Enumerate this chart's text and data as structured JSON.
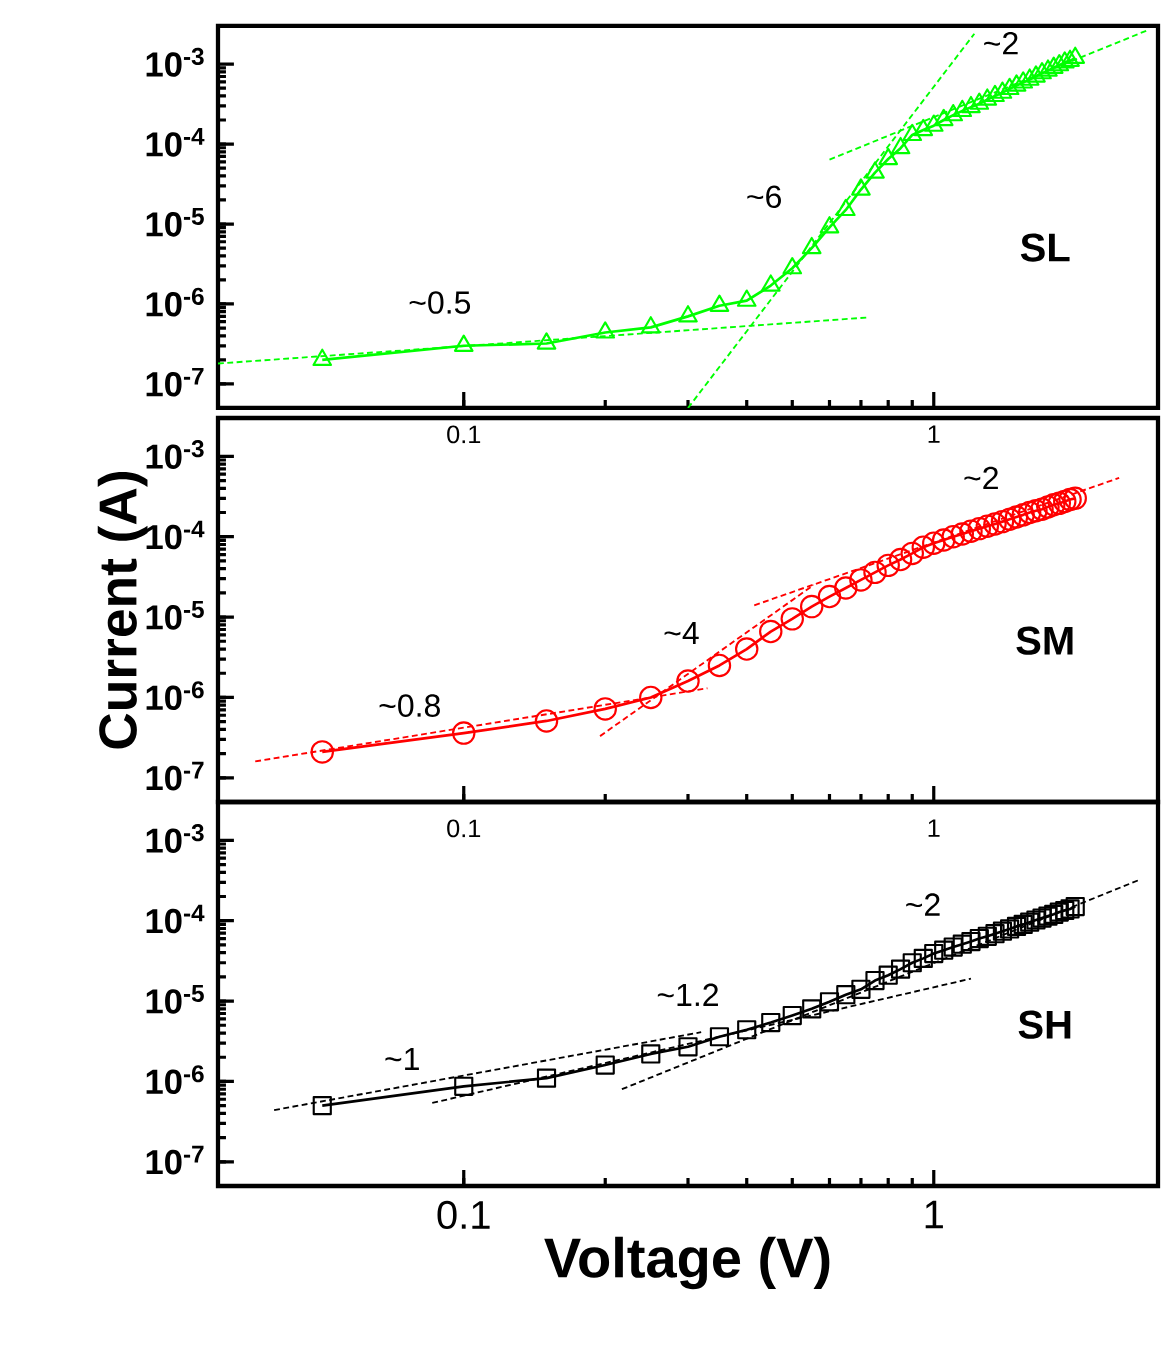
{
  "chart_data": [
    {
      "type": "line",
      "log": "xy",
      "xlim": [
        0.03,
        3
      ],
      "ylim": [
        5e-08,
        0.003
      ],
      "xticks": [
        0.1,
        1
      ],
      "yticks": [
        {
          "value": 1e-07,
          "label": "10$^{-7}$"
        },
        {
          "value": 1e-06,
          "label": "10$^{-6}$"
        },
        {
          "value": 1e-05,
          "label": "10$^{-5}$"
        },
        {
          "value": 0.0001,
          "label": "10$^{-4}$"
        },
        {
          "value": 0.001,
          "label": "10$^{-3}$"
        }
      ],
      "x": [
        0.05,
        0.1,
        0.15,
        0.2,
        0.25,
        0.3,
        0.35,
        0.4,
        0.45,
        0.5,
        0.55,
        0.6,
        0.65,
        0.7,
        0.75,
        0.8,
        0.85,
        0.9,
        0.95,
        1.0,
        1.05,
        1.1,
        1.15,
        1.2,
        1.25,
        1.3,
        1.35,
        1.4,
        1.45,
        1.5,
        1.55,
        1.6,
        1.65,
        1.7,
        1.75,
        1.8,
        1.85,
        1.9,
        1.95,
        2.0
      ],
      "series": [
        {
          "name": "SL",
          "color": "#00ff00",
          "marker": "triangle",
          "line_style": "solid",
          "values": [
            2e-07,
            3e-07,
            3.2e-07,
            4.4e-07,
            5.1e-07,
            7e-07,
            9.5e-07,
            1.1e-06,
            1.7e-06,
            2.8e-06,
            5e-06,
            9.1e-06,
            1.5e-05,
            2.7e-05,
            4.4e-05,
            6.5e-05,
            8.9e-05,
            0.00013,
            0.00015,
            0.00017,
            0.0002,
            0.00023,
            0.00026,
            0.00029,
            0.00032,
            0.00036,
            0.0004,
            0.00044,
            0.00049,
            0.00054,
            0.00059,
            0.00064,
            0.0007,
            0.00077,
            0.00083,
            0.0009,
            0.00097,
            0.00105,
            0.0011,
            0.0012
          ]
        },
        {
          "type": "line",
          "color": "#00ff00",
          "marker": "none",
          "line_style": "dashed",
          "x": [
            0.03,
            0.73
          ],
          "values": [
            1.8e-07,
            6.8e-07
          ]
        },
        {
          "type": "line",
          "color": "#00ff00",
          "marker": "none",
          "line_style": "dashed",
          "x": [
            0.3,
            1.22
          ],
          "values": [
            5e-08,
            0.0024
          ]
        },
        {
          "type": "line",
          "color": "#00ff00",
          "marker": "none",
          "line_style": "dashed",
          "x": [
            0.6,
            2.87
          ],
          "values": [
            6.4e-05,
            0.0027
          ]
        }
      ],
      "annotations": [
        "~0.5",
        "~6",
        "~2"
      ]
    },
    {
      "type": "line",
      "log": "xy",
      "xlim": [
        0.03,
        3
      ],
      "ylim": [
        5e-08,
        0.003
      ],
      "xticks": [
        0.1,
        1
      ],
      "yticks": [
        {
          "value": 1e-07,
          "label": "10$^{-7}$"
        },
        {
          "value": 1e-06,
          "label": "10$^{-6}$"
        },
        {
          "value": 1e-05,
          "label": "10$^{-5}$"
        },
        {
          "value": 0.0001,
          "label": "10$^{-4}$"
        },
        {
          "value": 0.001,
          "label": "10$^{-3}$"
        }
      ],
      "ylabel": "Current (A)",
      "x": [
        0.05,
        0.1,
        0.15,
        0.2,
        0.25,
        0.3,
        0.35,
        0.4,
        0.45,
        0.5,
        0.55,
        0.6,
        0.65,
        0.7,
        0.75,
        0.8,
        0.85,
        0.9,
        0.95,
        1.0,
        1.05,
        1.1,
        1.15,
        1.2,
        1.25,
        1.3,
        1.35,
        1.4,
        1.45,
        1.5,
        1.55,
        1.6,
        1.65,
        1.7,
        1.75,
        1.8,
        1.85,
        1.9,
        1.95,
        2.0
      ],
      "series": [
        {
          "name": "SM",
          "color": "#ff0000",
          "marker": "circle",
          "line_style": "solid",
          "values": [
            2.1e-07,
            3.6e-07,
            5.1e-07,
            7.2e-07,
            1e-06,
            1.6e-06,
            2.5e-06,
            4e-06,
            6.6e-06,
            9.5e-06,
            1.35e-05,
            1.8e-05,
            2.3e-05,
            2.9e-05,
            3.6e-05,
            4.4e-05,
            5.2e-05,
            6.2e-05,
            7.4e-05,
            8.3e-05,
            9.1e-05,
            0.0001,
            0.000108,
            0.000117,
            0.000126,
            0.000135,
            0.000144,
            0.000154,
            0.000165,
            0.000176,
            0.000187,
            0.0002,
            0.00021,
            0.00022,
            0.000235,
            0.00025,
            0.00026,
            0.000275,
            0.00029,
            0.0003
          ]
        },
        {
          "type": "line",
          "color": "#ff0000",
          "marker": "none",
          "line_style": "dashed",
          "x": [
            0.036,
            0.33
          ],
          "values": [
            1.6e-07,
            1.3e-06
          ]
        },
        {
          "type": "line",
          "color": "#ff0000",
          "marker": "none",
          "line_style": "dashed",
          "x": [
            0.195,
            0.555
          ],
          "values": [
            3.3e-07,
            2.5e-05
          ]
        },
        {
          "type": "line",
          "color": "#ff0000",
          "marker": "none",
          "line_style": "dashed",
          "x": [
            0.415,
            2.48
          ],
          "values": [
            1.4e-05,
            0.00054
          ]
        }
      ],
      "annotations": [
        "~0.8",
        "~4",
        "~2"
      ]
    },
    {
      "type": "line",
      "log": "xy",
      "xlim": [
        0.03,
        3
      ],
      "ylim": [
        5e-08,
        0.003
      ],
      "xticks": [
        0.1,
        1
      ],
      "yticks": [
        {
          "value": 1e-07,
          "label": "10$^{-7}$"
        },
        {
          "value": 1e-06,
          "label": "10$^{-6}$"
        },
        {
          "value": 1e-05,
          "label": "10$^{-5}$"
        },
        {
          "value": 0.0001,
          "label": "10$^{-4}$"
        },
        {
          "value": 0.001,
          "label": "10$^{-3}$"
        }
      ],
      "xlabel": "Voltage (V)",
      "x": [
        0.05,
        0.1,
        0.15,
        0.2,
        0.25,
        0.3,
        0.35,
        0.4,
        0.45,
        0.5,
        0.55,
        0.6,
        0.65,
        0.7,
        0.75,
        0.8,
        0.85,
        0.9,
        0.95,
        1.0,
        1.05,
        1.1,
        1.15,
        1.2,
        1.25,
        1.3,
        1.35,
        1.4,
        1.45,
        1.5,
        1.55,
        1.6,
        1.65,
        1.7,
        1.75,
        1.8,
        1.85,
        1.9,
        1.95,
        2.0
      ],
      "series": [
        {
          "name": "SH",
          "color": "#000000",
          "marker": "square",
          "line_style": "solid",
          "values": [
            5e-07,
            8.7e-07,
            1.1e-06,
            1.6e-06,
            2.2e-06,
            2.7e-06,
            3.6e-06,
            4.4e-06,
            5.4e-06,
            6.6e-06,
            8e-06,
            9.8e-06,
            1.2e-05,
            1.4e-05,
            1.8e-05,
            2.1e-05,
            2.5e-05,
            3e-05,
            3.4e-05,
            3.9e-05,
            4.3e-05,
            4.7e-05,
            5.1e-05,
            5.5e-05,
            6e-05,
            6.4e-05,
            6.9e-05,
            7.4e-05,
            7.9e-05,
            8.5e-05,
            9e-05,
            9.6e-05,
            0.000102,
            0.000108,
            0.000114,
            0.00012,
            0.000128,
            0.000134,
            0.00014,
            0.00015
          ]
        },
        {
          "type": "line",
          "color": "#000000",
          "marker": "none",
          "line_style": "dashed",
          "x": [
            0.0395,
            0.32
          ],
          "values": [
            4.4e-07,
            4.1e-06
          ]
        },
        {
          "type": "line",
          "color": "#000000",
          "marker": "none",
          "line_style": "dashed",
          "x": [
            0.0857,
            1.2
          ],
          "values": [
            5.4e-07,
            1.9e-05
          ]
        },
        {
          "type": "line",
          "color": "#000000",
          "marker": "none",
          "line_style": "dashed",
          "x": [
            0.217,
            2.73
          ],
          "values": [
            8e-07,
            0.00032
          ]
        }
      ],
      "annotations": [
        "~1",
        "~1.2",
        "~2"
      ]
    }
  ]
}
